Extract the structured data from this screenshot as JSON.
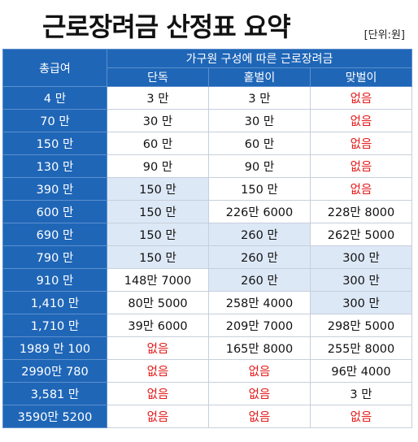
{
  "header": {
    "title": "근로장려금 산정표 요약",
    "unit": "[단위:원]"
  },
  "table": {
    "row_header": "총급여",
    "group_header": "가구원 구성에 따른 근로장려금",
    "columns": [
      "단독",
      "홑벌이",
      "맞벌이"
    ],
    "highlight_color": "#dde8f6",
    "header_color": "#1f66b7",
    "none_color": "#e31b1b",
    "rows": [
      {
        "label": "4 만",
        "cells": [
          {
            "v": "3 만"
          },
          {
            "v": "3 만"
          },
          {
            "v": "없음",
            "none": true
          }
        ]
      },
      {
        "label": "70 만",
        "cells": [
          {
            "v": "30 만"
          },
          {
            "v": "30 만"
          },
          {
            "v": "없음",
            "none": true
          }
        ]
      },
      {
        "label": "150 만",
        "cells": [
          {
            "v": "60 만"
          },
          {
            "v": "60 만"
          },
          {
            "v": "없음",
            "none": true
          }
        ]
      },
      {
        "label": "130 만",
        "cells": [
          {
            "v": "90 만"
          },
          {
            "v": "90 만"
          },
          {
            "v": "없음",
            "none": true
          }
        ]
      },
      {
        "label": "390 만",
        "cells": [
          {
            "v": "150 만",
            "hl": true
          },
          {
            "v": "150 만"
          },
          {
            "v": "없음",
            "none": true
          }
        ]
      },
      {
        "label": "600 만",
        "cells": [
          {
            "v": "150 만",
            "hl": true
          },
          {
            "v": "226만 6000"
          },
          {
            "v": "228만 8000"
          }
        ]
      },
      {
        "label": "690 만",
        "cells": [
          {
            "v": "150 만",
            "hl": true
          },
          {
            "v": "260 만",
            "hl": true
          },
          {
            "v": "262만 5000"
          }
        ]
      },
      {
        "label": "790 만",
        "cells": [
          {
            "v": "150 만",
            "hl": true
          },
          {
            "v": "260 만",
            "hl": true
          },
          {
            "v": "300 만",
            "hl": true
          }
        ]
      },
      {
        "label": "910 만",
        "cells": [
          {
            "v": "148만 7000"
          },
          {
            "v": "260 만",
            "hl": true
          },
          {
            "v": "300 만",
            "hl": true
          }
        ]
      },
      {
        "label": "1,410 만",
        "cells": [
          {
            "v": "80만 5000"
          },
          {
            "v": "258만 4000"
          },
          {
            "v": "300 만",
            "hl": true
          }
        ]
      },
      {
        "label": "1,710 만",
        "cells": [
          {
            "v": "39만 6000"
          },
          {
            "v": "209만 7000"
          },
          {
            "v": "298만 5000"
          }
        ]
      },
      {
        "label": "1989 만 100",
        "cells": [
          {
            "v": "없음",
            "none": true
          },
          {
            "v": "165만 8000"
          },
          {
            "v": "255만 8000"
          }
        ]
      },
      {
        "label": "2990만 780",
        "cells": [
          {
            "v": "없음",
            "none": true
          },
          {
            "v": "없음",
            "none": true
          },
          {
            "v": "96만 4000"
          }
        ]
      },
      {
        "label": "3,581 만",
        "cells": [
          {
            "v": "없음",
            "none": true
          },
          {
            "v": "없음",
            "none": true
          },
          {
            "v": "3 만"
          }
        ]
      },
      {
        "label": "3590만 5200",
        "cells": [
          {
            "v": "없음",
            "none": true
          },
          {
            "v": "없음",
            "none": true
          },
          {
            "v": "없음",
            "none": true
          }
        ]
      }
    ]
  }
}
